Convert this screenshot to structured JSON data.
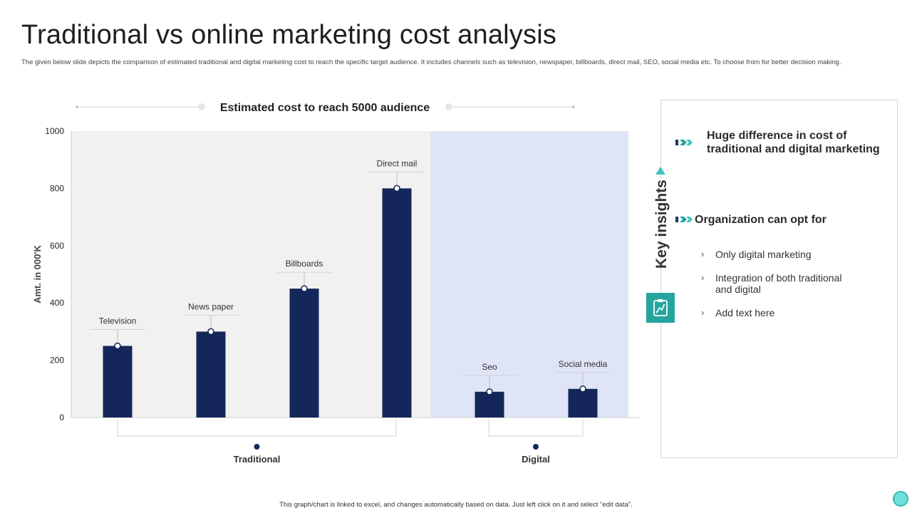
{
  "page": {
    "title": "Traditional vs online marketing cost analysis",
    "description": "The given below slide depicts the comparison of estimated traditional and digital marketing cost to reach the specific target audience. It includes channels such as television, newspaper, billboards, direct mail, SEO, social media etc. To choose from for better decision making.",
    "footer": "This graph/chart is linked to excel, and changes automatically based on data. Just left click on it and select \"edit data\"."
  },
  "chart_data": {
    "type": "bar",
    "title": "Estimated cost to reach 5000 audience",
    "ylabel": "Amt. in 000'K",
    "xlabel": "",
    "ylim": [
      0,
      1000
    ],
    "yticks": [
      0,
      200,
      400,
      600,
      800,
      1000
    ],
    "categories": [
      "Television",
      "News paper",
      "Billboards",
      "Direct mail",
      "Seo",
      "Social media"
    ],
    "values": [
      250,
      300,
      450,
      800,
      90,
      100
    ],
    "groups": [
      {
        "name": "Traditional",
        "categories": [
          "Television",
          "News paper",
          "Billboards",
          "Direct mail"
        ]
      },
      {
        "name": "Digital",
        "categories": [
          "Seo",
          "Social media"
        ]
      }
    ],
    "grid": false,
    "colors": {
      "bar": "#15275a",
      "traditional_bg": "#f1f1f1",
      "digital_bg": "#dfe5f7"
    }
  },
  "insights": {
    "title": "Key insights",
    "icon": "clipboard-chart-icon",
    "heading_1": "Huge difference in cost of traditional and digital marketing",
    "heading_2": "Organization can opt for",
    "bullets": [
      "Only digital marketing",
      "Integration of both traditional and digital",
      "Add text here"
    ],
    "colors": {
      "accent": "#25a59d",
      "triangle": "#3fc1bd"
    }
  }
}
